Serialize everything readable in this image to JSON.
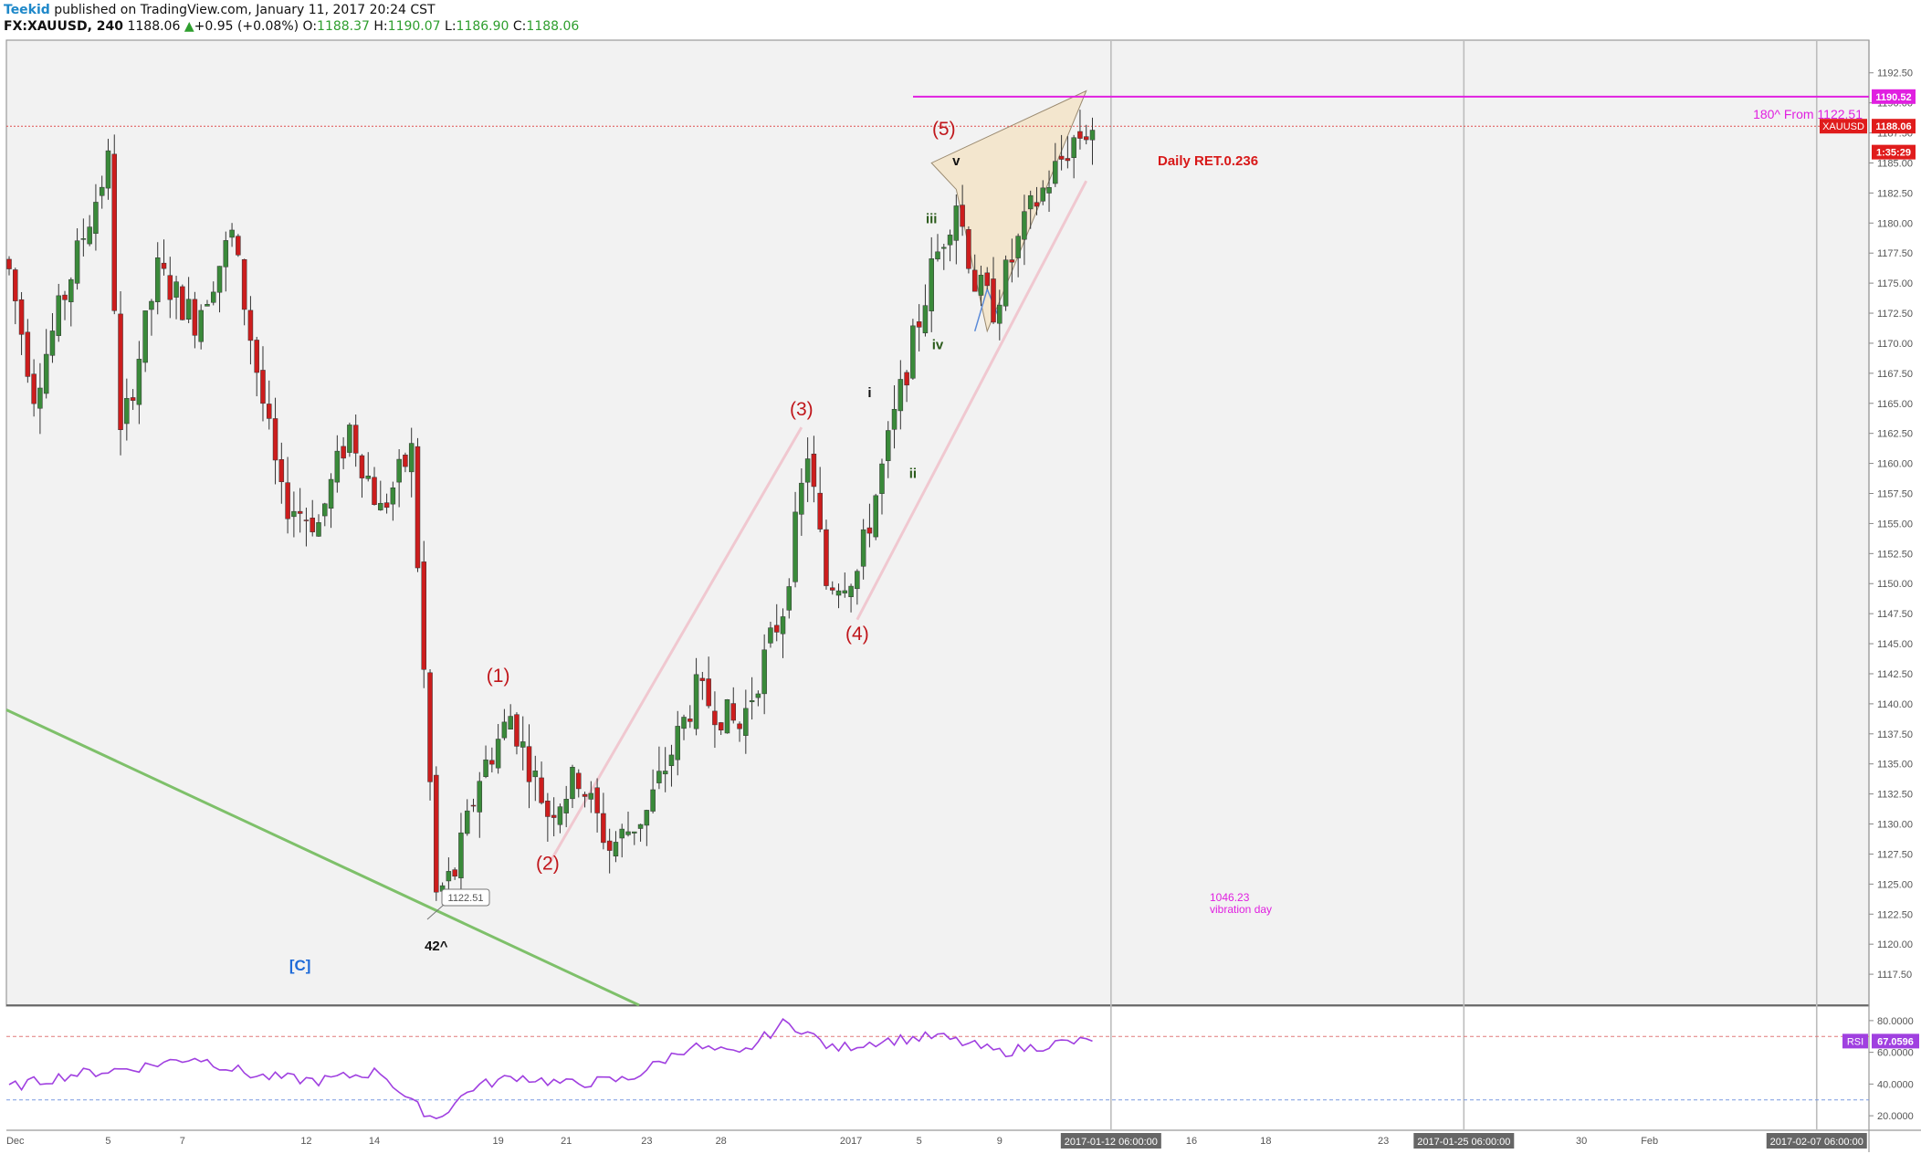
{
  "header": {
    "author": "Teekid",
    "published": "published on TradingView.com, January 11, 2017 20:24 CST",
    "symbol": "FX:XAUUSD, 240",
    "last": "1188.06",
    "change_arrow": "▲",
    "change": "+0.95 (+0.08%)",
    "o_label": "O:",
    "o_value": "1188.37",
    "h_label": "H:",
    "h_value": "1190.07",
    "l_label": "L:",
    "l_value": "1186.90",
    "c_label": "C:",
    "c_value": "1188.06"
  },
  "colors": {
    "up": "#3a8a3a",
    "down": "#cc1d1d",
    "wave": "#c0161b",
    "magenta": "#e020e0",
    "rsi": "#a040e0",
    "trend": "#7ec06a",
    "pattern_fill": "#f3e4c8",
    "background": "#f2f2f2"
  },
  "chart_data": {
    "type": "candlestick",
    "symbol": "XAUUSD",
    "timeframe": "240",
    "ylim": [
      1115,
      1194
    ],
    "y_ticks": [
      "1192.50",
      "1190.00",
      "1187.50",
      "1185.00",
      "1182.50",
      "1180.00",
      "1177.50",
      "1175.00",
      "1172.50",
      "1170.00",
      "1167.50",
      "1165.00",
      "1162.50",
      "1160.00",
      "1157.50",
      "1155.00",
      "1152.50",
      "1150.00",
      "1147.50",
      "1145.00",
      "1142.50",
      "1140.00",
      "1137.50",
      "1135.00",
      "1132.50",
      "1130.00",
      "1127.50",
      "1125.00",
      "1122.50",
      "1120.00",
      "1117.50"
    ],
    "x_ticks": [
      {
        "i": 1,
        "label": "Dec"
      },
      {
        "i": 16,
        "label": "5"
      },
      {
        "i": 28,
        "label": "7"
      },
      {
        "i": 48,
        "label": "12"
      },
      {
        "i": 59,
        "label": "14"
      },
      {
        "i": 79,
        "label": "19"
      },
      {
        "i": 90,
        "label": "21"
      },
      {
        "i": 103,
        "label": "23"
      },
      {
        "i": 115,
        "label": "28"
      },
      {
        "i": 136,
        "label": "2017"
      },
      {
        "i": 147,
        "label": "5"
      },
      {
        "i": 160,
        "label": "9"
      },
      {
        "i": 191,
        "label": "16"
      },
      {
        "i": 203,
        "label": "18"
      },
      {
        "i": 222,
        "label": "23"
      },
      {
        "i": 254,
        "label": "30"
      },
      {
        "i": 265,
        "label": "Feb"
      }
    ],
    "x_highlight_labels": [
      {
        "i": 178,
        "label": "2017-01-12 06:00:00"
      },
      {
        "i": 235,
        "label": "2017-01-25 06:00:00"
      },
      {
        "i": 292,
        "label": "2017-02-07 06:00:00"
      }
    ],
    "pivots": [
      [
        0,
        1176
      ],
      [
        4,
        1166
      ],
      [
        12,
        1179
      ],
      [
        16,
        1185
      ],
      [
        18,
        1162
      ],
      [
        24,
        1176
      ],
      [
        30,
        1172
      ],
      [
        36,
        1179
      ],
      [
        41,
        1165
      ],
      [
        44,
        1157
      ],
      [
        50,
        1155
      ],
      [
        55,
        1163
      ],
      [
        60,
        1156
      ],
      [
        65,
        1161
      ],
      [
        69,
        1124
      ],
      [
        72,
        1126
      ],
      [
        76,
        1134
      ],
      [
        81,
        1139
      ],
      [
        87,
        1131
      ],
      [
        92,
        1134
      ],
      [
        97,
        1128
      ],
      [
        103,
        1131
      ],
      [
        111,
        1141
      ],
      [
        118,
        1138
      ],
      [
        125,
        1148
      ],
      [
        129,
        1161
      ],
      [
        132,
        1150
      ],
      [
        137,
        1151
      ],
      [
        145,
        1168
      ],
      [
        149,
        1176
      ],
      [
        153,
        1182
      ],
      [
        156,
        1175
      ],
      [
        159,
        1173
      ],
      [
        165,
        1181
      ],
      [
        172,
        1187
      ],
      [
        175,
        1188
      ]
    ],
    "seed": 7,
    "last_price": "1188.06",
    "price_labels": [
      {
        "label": "1190.52",
        "value": 1190.52,
        "color": "#e020e0"
      },
      {
        "label": "1188.06",
        "value": 1188.06,
        "color": "#e01c1c"
      },
      {
        "label": "1:35:29",
        "value": 1185.9,
        "color": "#e01c1c"
      }
    ],
    "symbol_tag": "XAUUSD",
    "wave_labels": [
      {
        "text": "(1)",
        "i": 79,
        "y": 1141.8,
        "color": "#c0161b"
      },
      {
        "text": "(2)",
        "i": 87,
        "y": 1126.2,
        "color": "#c0161b"
      },
      {
        "text": "(3)",
        "i": 128,
        "y": 1164.0,
        "color": "#c0161b"
      },
      {
        "text": "(4)",
        "i": 137,
        "y": 1145.3,
        "color": "#c0161b"
      },
      {
        "text": "(5)",
        "i": 151,
        "y": 1187.3,
        "color": "#c0161b"
      },
      {
        "text": "i",
        "i": 139,
        "y": 1165.5,
        "color": "#111111"
      },
      {
        "text": "ii",
        "i": 146,
        "y": 1158.8,
        "color": "#2a5a1a"
      },
      {
        "text": "iii",
        "i": 149,
        "y": 1180.0,
        "color": "#2a5a1a"
      },
      {
        "text": "iv",
        "i": 150,
        "y": 1169.5,
        "color": "#2a5a1a"
      },
      {
        "text": "v",
        "i": 153,
        "y": 1184.8,
        "color": "#111111"
      },
      {
        "text": "42^",
        "i": 69,
        "y": 1119.5,
        "color": "#111111"
      },
      {
        "text": "[C]",
        "i": 47,
        "y": 1117.8,
        "color": "#1e6ad8"
      }
    ],
    "annotations": {
      "horizontal_level": {
        "value": 1190.52,
        "label": "180^ From 1122.51"
      },
      "daily_ret": "Daily RET.0.236",
      "vibration_value": "1046.23",
      "vibration_text": "vibration day",
      "low_callout": "1122.51"
    },
    "rsi": {
      "name": "RSI",
      "value": "67.0596",
      "ylim": [
        12,
        88
      ],
      "y_ticks": [
        "80.0000",
        "60.0000",
        "40.0000",
        "20.0000"
      ],
      "upper_band": 70,
      "lower_band": 30,
      "series_pivots": [
        [
          0,
          38
        ],
        [
          10,
          46
        ],
        [
          20,
          50
        ],
        [
          30,
          57
        ],
        [
          40,
          45
        ],
        [
          50,
          42
        ],
        [
          60,
          48
        ],
        [
          65,
          28
        ],
        [
          69,
          18
        ],
        [
          75,
          38
        ],
        [
          82,
          45
        ],
        [
          90,
          40
        ],
        [
          100,
          43
        ],
        [
          110,
          64
        ],
        [
          118,
          58
        ],
        [
          125,
          78
        ],
        [
          128,
          75
        ],
        [
          133,
          62
        ],
        [
          140,
          67
        ],
        [
          150,
          70
        ],
        [
          160,
          60
        ],
        [
          170,
          66
        ],
        [
          175,
          67.06
        ]
      ]
    }
  }
}
